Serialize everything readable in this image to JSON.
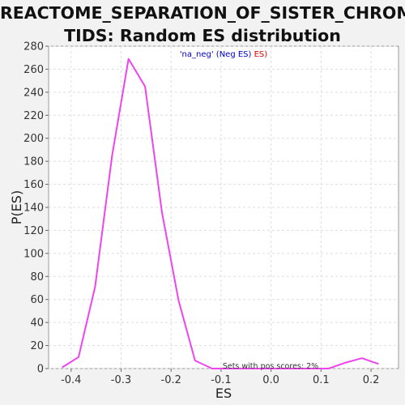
{
  "chart_data": {
    "type": "line",
    "title_line1": "REACTOME_SEPARATION_OF_SISTER_CHROMA",
    "title_line2": "TIDS: Random ES distribution",
    "xlabel": "ES",
    "ylabel": "P(ES)",
    "xlim": [
      -0.445,
      0.255
    ],
    "ylim": [
      0,
      280
    ],
    "x_ticks": [
      "-0.4",
      "-0.3",
      "-0.2",
      "-0.1",
      "0.0",
      "0.1",
      "0.2"
    ],
    "x_tick_values": [
      -0.4,
      -0.3,
      -0.2,
      -0.1,
      0.0,
      0.1,
      0.2
    ],
    "y_ticks": [
      "0",
      "20",
      "40",
      "60",
      "80",
      "100",
      "120",
      "140",
      "160",
      "180",
      "200",
      "220",
      "240",
      "260",
      "280"
    ],
    "y_tick_values": [
      0,
      20,
      40,
      60,
      80,
      100,
      120,
      140,
      160,
      180,
      200,
      220,
      240,
      260,
      280
    ],
    "grid": true,
    "legend": {
      "part1": "'na_neg' (Neg ES)",
      "part2": " ES)",
      "color1": "#0000cc",
      "color2": "#dd0000",
      "placement": "top-center"
    },
    "annotation": "Sets with pos scores: 2%",
    "series": [
      {
        "color": "#ee44ee",
        "x": [
          -0.418,
          -0.385,
          -0.352,
          -0.318,
          -0.285,
          -0.252,
          -0.218,
          -0.185,
          -0.152,
          -0.118,
          -0.085,
          -0.052,
          -0.018,
          0.015,
          0.048,
          0.082,
          0.115,
          0.148,
          0.182,
          0.215
        ],
        "y": [
          1,
          10,
          71,
          185,
          269,
          245,
          135,
          59,
          7,
          0,
          0,
          0,
          0,
          0,
          0,
          0,
          0,
          5,
          9,
          4
        ]
      }
    ]
  }
}
